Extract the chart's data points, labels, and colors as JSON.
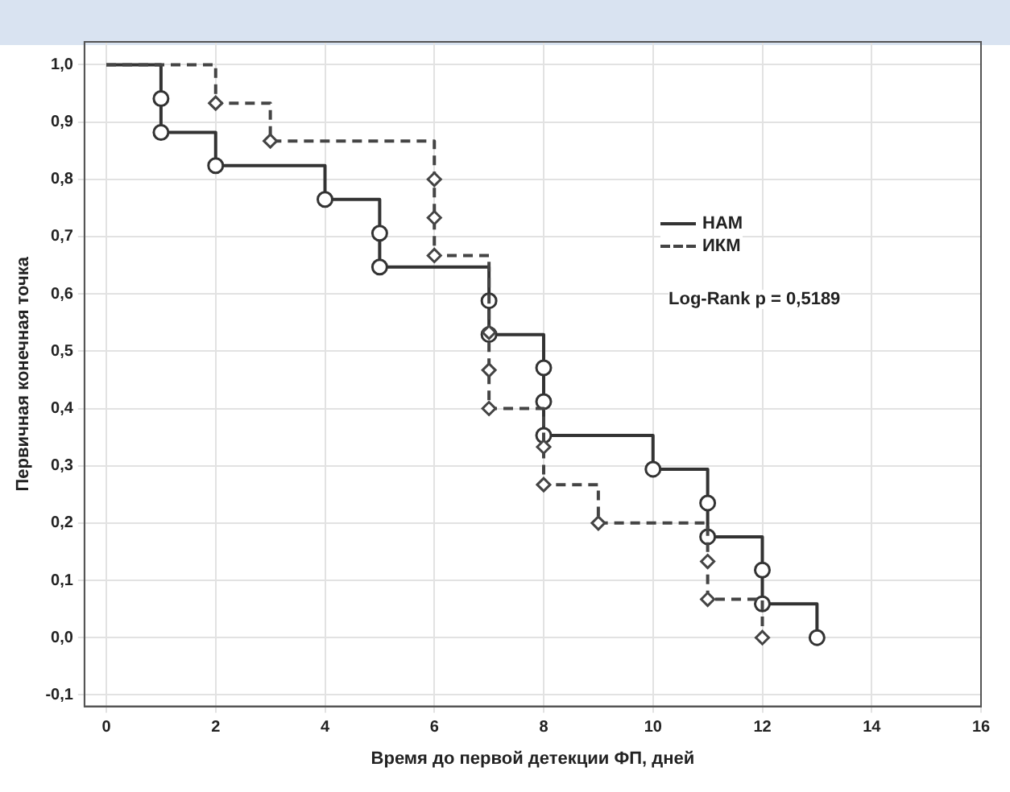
{
  "chart_data": {
    "type": "step",
    "xlabel": "Время до первой детекции ФП, дней",
    "ylabel": "Первичная конечная точка",
    "xlim": [
      -0.4,
      16
    ],
    "xticks": [
      0,
      2,
      4,
      6,
      8,
      10,
      12,
      14,
      16
    ],
    "ylim": [
      -0.12,
      1.04
    ],
    "yticks": [
      {
        "value": -0.1,
        "label": "-0,1"
      },
      {
        "value": 0,
        "label": "0,0"
      },
      {
        "value": 0.1,
        "label": "0,1"
      },
      {
        "value": 0.2,
        "label": "0,2"
      },
      {
        "value": 0.3,
        "label": "0,3"
      },
      {
        "value": 0.4,
        "label": "0,4"
      },
      {
        "value": 0.5,
        "label": "0,5"
      },
      {
        "value": 0.6,
        "label": "0,6"
      },
      {
        "value": 0.7,
        "label": "0,7"
      },
      {
        "value": 0.8,
        "label": "0,8"
      },
      {
        "value": 0.9,
        "label": "0,9"
      },
      {
        "value": 1,
        "label": "1,0"
      }
    ],
    "grid": true,
    "legend": "top right",
    "annotations": [
      "Log-Rank p = 0,5189"
    ],
    "series": [
      {
        "name": "НАМ",
        "color": "#333333",
        "line_style": "solid",
        "marker": "circle",
        "x": [
          0,
          1,
          1,
          2,
          4,
          5,
          5,
          7,
          7,
          8,
          8,
          8,
          10,
          11,
          11,
          12,
          12,
          13
        ],
        "values": [
          1,
          0.941,
          0.882,
          0.824,
          0.765,
          0.706,
          0.647,
          0.588,
          0.529,
          0.471,
          0.412,
          0.353,
          0.294,
          0.235,
          0.176,
          0.118,
          0.059,
          0
        ]
      },
      {
        "name": "ИКМ",
        "color": "#444444",
        "line_style": "dashed",
        "marker": "diamond",
        "x": [
          0,
          2,
          3,
          6,
          6,
          6,
          7,
          7,
          7,
          8,
          8,
          9,
          11,
          11,
          12
        ],
        "values": [
          1,
          0.933,
          0.867,
          0.8,
          0.733,
          0.667,
          0.533,
          0.467,
          0.4,
          0.333,
          0.267,
          0.2,
          0.133,
          0.067,
          0
        ]
      }
    ]
  }
}
